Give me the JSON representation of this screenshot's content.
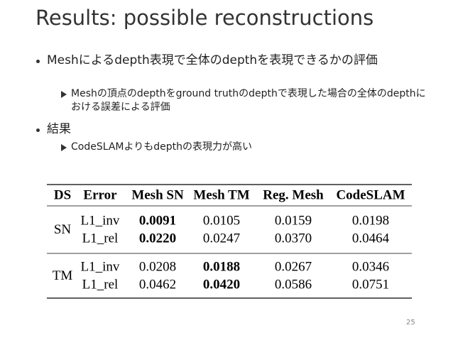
{
  "title": "Results: possible reconstructions",
  "bullets": [
    {
      "text": "Meshによるdepth表現で全体のdepthを表現できるかの評価",
      "sub": [
        "Meshの頂点のdepthをground truthのdepthで表現した場合の全体のdepthにおける誤差による評価"
      ]
    },
    {
      "text": "結果",
      "sub": [
        "CodeSLAMよりもdepthの表現力が高い"
      ]
    }
  ],
  "table": {
    "header": [
      "DS",
      "Error",
      "Mesh SN",
      "Mesh TM",
      "Reg. Mesh",
      "CodeSLAM"
    ],
    "groups": [
      {
        "label": "SN",
        "rows": [
          [
            "L1_inv",
            "0.0091",
            "0.0105",
            "0.0159",
            "0.0198"
          ],
          [
            "L1_rel",
            "0.0220",
            "0.0247",
            "0.0370",
            "0.0464"
          ]
        ]
      },
      {
        "label": "TM",
        "rows": [
          [
            "L1_inv",
            "0.0208",
            "0.0188",
            "0.0267",
            "0.0346"
          ],
          [
            "L1_rel",
            "0.0462",
            "0.0420",
            "0.0586",
            "0.0751"
          ]
        ]
      }
    ]
  },
  "page_number": "25"
}
